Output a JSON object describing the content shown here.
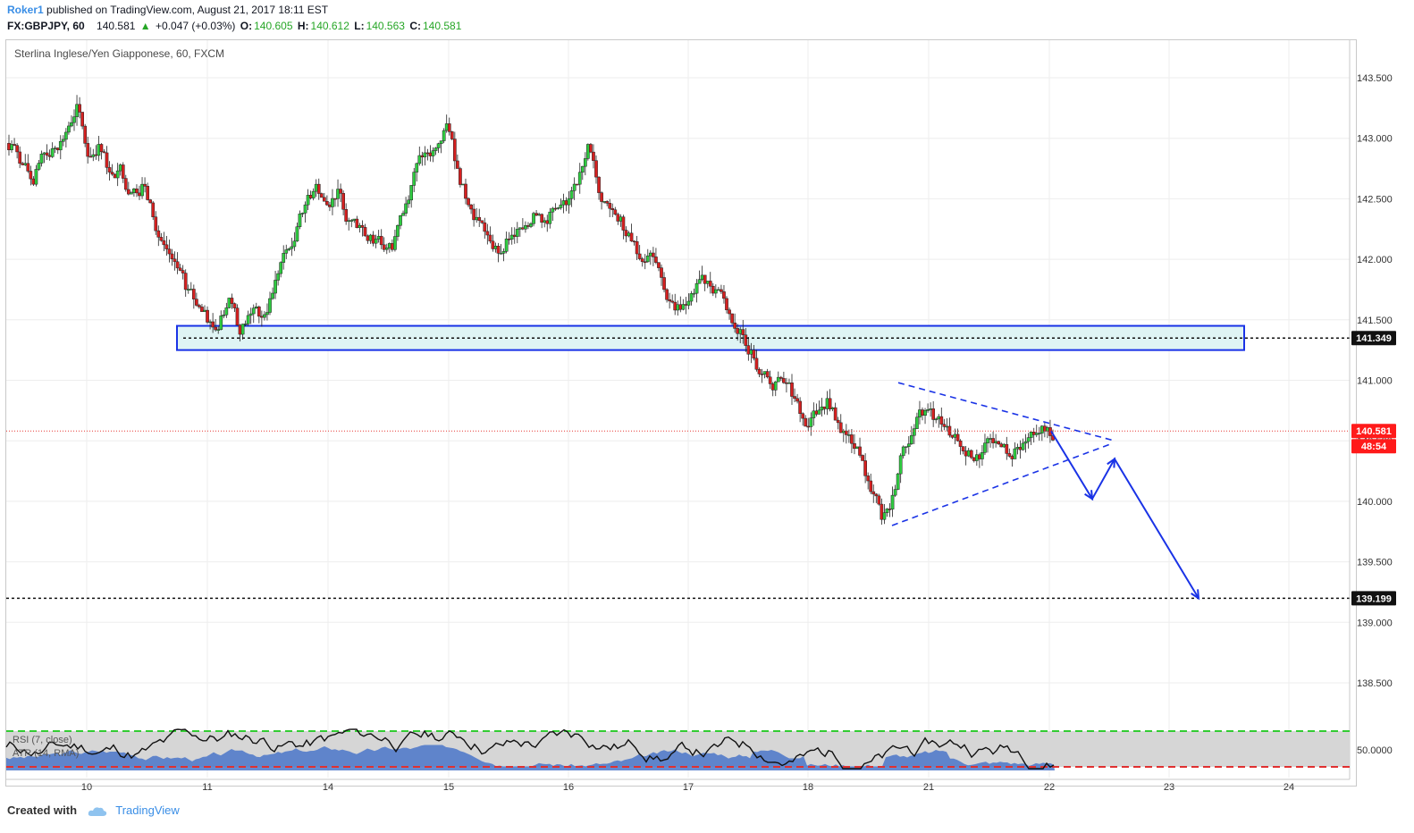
{
  "header": {
    "user": "Roker1",
    "published": "published on TradingView.com, August 21, 2017 18:11 EST",
    "symbol": "FX:GBPJPY, 60",
    "last": "140.581",
    "change_arrow": "▲",
    "change": "+0.047 (+0.03%)",
    "o_label": "O:",
    "o_value": "140.605",
    "h_label": "H:",
    "h_value": "140.612",
    "l_label": "L:",
    "l_value": "140.563",
    "c_label": "C:",
    "c_value": "140.581"
  },
  "pane_title": "Sterlina Inglese/Yen Giapponese, 60, FXCM",
  "indicators": {
    "rsi": "RSI (7, close)",
    "atr": "ATR (14, RMA)",
    "rsi_level": "50.0000"
  },
  "price_labels": {
    "resistance": "141.349",
    "current": "140.581",
    "countdown": "48:54",
    "target": "139.199"
  },
  "footer": {
    "created_with": "Created with",
    "brand": "TradingView",
    "brand_icon": "cloud-icon"
  },
  "colors": {
    "up": "#2ecc40",
    "down": "#d62020",
    "drawing": "#1a33e6",
    "zone_fill": "#dff4f4",
    "rsi_band": "#d6d6d6",
    "atr_fill": "#4a76c9",
    "rsi_upper": "#33cc33",
    "rsi_lower": "#e03030",
    "current_line": "#e53935"
  },
  "chart_data": {
    "type": "candlestick",
    "title": "Sterlina Inglese/Yen Giapponese, 60, FXCM",
    "y_axis": {
      "ticks": [
        138.5,
        139.0,
        139.5,
        140.0,
        140.5,
        141.0,
        141.5,
        142.0,
        142.5,
        143.0,
        143.5
      ],
      "tick_labels": [
        "138.500",
        "139.000",
        "139.500",
        "140.000",
        "140.500",
        "141.000",
        "141.500",
        "142.000",
        "142.500",
        "143.000",
        "143.500"
      ],
      "range": [
        138.2,
        143.75
      ]
    },
    "x_axis": {
      "ticks": [
        "10",
        "11",
        "14",
        "15",
        "16",
        "17",
        "18",
        "21",
        "22",
        "23",
        "24"
      ]
    },
    "grid": true,
    "ohlc_close_path": [
      142.95,
      142.78,
      142.62,
      142.88,
      142.92,
      143.05,
      143.28,
      142.85,
      142.95,
      142.72,
      142.78,
      142.55,
      142.62,
      142.35,
      142.12,
      141.98,
      141.75,
      141.62,
      141.48,
      141.42,
      141.68,
      141.38,
      141.55,
      141.52,
      141.72,
      142.05,
      142.15,
      142.45,
      142.62,
      142.45,
      142.58,
      142.32,
      142.28,
      142.2,
      142.12,
      142.08,
      142.38,
      142.72,
      142.88,
      142.92,
      143.12,
      142.75,
      142.45,
      142.32,
      142.15,
      142.05,
      142.2,
      142.25,
      142.38,
      142.32,
      142.42,
      142.45,
      142.62,
      142.95,
      142.55,
      142.42,
      142.35,
      142.15,
      141.98,
      142.02,
      141.75,
      141.58,
      141.62,
      141.8,
      141.82,
      141.75,
      141.55,
      141.42,
      141.25,
      141.05,
      140.92,
      140.98,
      140.85,
      140.62,
      140.72,
      140.85,
      140.65,
      140.55,
      140.38,
      140.08,
      139.85,
      140.05,
      140.45,
      140.6,
      140.75,
      140.68,
      140.62,
      140.5,
      140.42,
      140.35,
      140.52,
      140.45,
      140.35,
      140.48,
      140.55,
      140.58,
      140.581
    ],
    "annotations": {
      "support_resistance_zone": [
        141.25,
        141.45
      ],
      "resistance_level": 141.349,
      "current_price": 140.581,
      "target_level": 139.199,
      "triangle_upper": [
        [
          140.98,
          140.5
        ]
      ],
      "triangle_lower": [
        [
          139.78,
          140.49
        ]
      ],
      "projection": [
        140.58,
        140.02,
        140.35,
        139.199
      ]
    },
    "indicators": [
      {
        "name": "RSI (7, close)",
        "level": 50
      },
      {
        "name": "ATR (14, RMA)"
      }
    ]
  }
}
